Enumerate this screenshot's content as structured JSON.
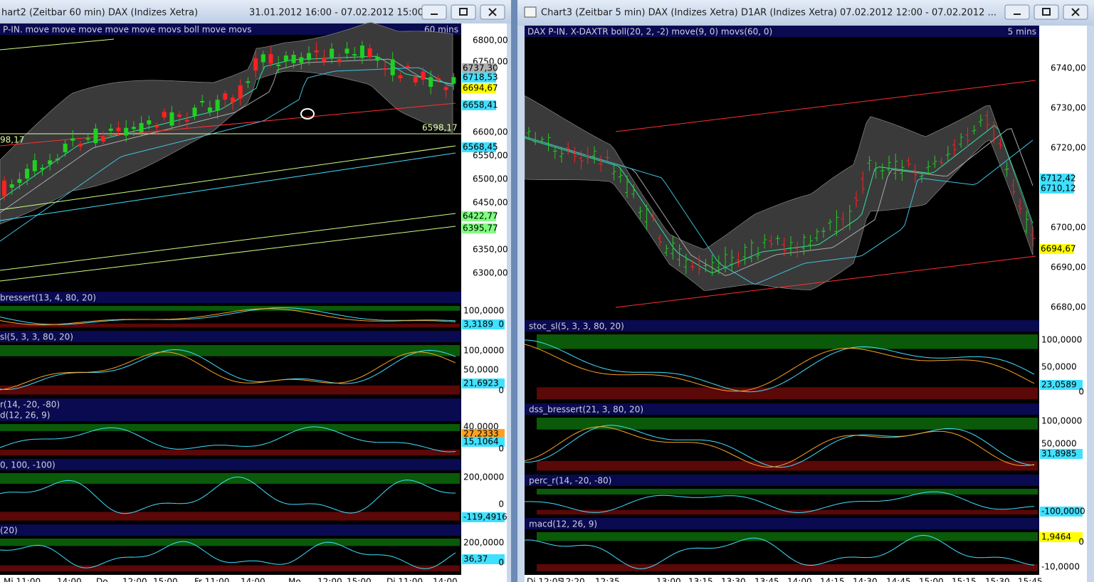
{
  "left": {
    "title": "hart2 (Zeitbar 60 min)  DAX (Indizes Xetra)",
    "range": "31.01.2012 16:00 - 07.02.2012 15:00",
    "header": "P-IN. move move move move move movs boll move movs",
    "interval": "60 mins",
    "price_labels": [
      "6800,00",
      "6750,00",
      "6737,30",
      "6718,53",
      "6694,67",
      "6658,41",
      "6600,00",
      "6568,45",
      "6550,00",
      "6500,00",
      "6450,00",
      "6422,77",
      "6395,77",
      "6350,00",
      "6300,00"
    ],
    "inline_label": "6598,17",
    "edge_label": "98,17",
    "panels": [
      {
        "names": [
          "bressert(13, 4, 80, 20)"
        ],
        "labels": [
          "100,0000",
          "3,3189",
          "0"
        ]
      },
      {
        "names": [
          "sl(5, 3, 3, 80, 20)"
        ],
        "labels": [
          "100,0000",
          "50,0000",
          "21,6923",
          "0"
        ]
      },
      {
        "names": [
          "r(14, -20, -80)",
          "d(12, 26, 9)"
        ],
        "labels": [
          "40,0000",
          "27,2333",
          "15,1064",
          "0"
        ]
      },
      {
        "names": [
          "0, 100, -100)"
        ],
        "labels": [
          "200,0000",
          "-119,4916",
          "0"
        ]
      },
      {
        "names": [
          "(20)"
        ],
        "labels": [
          "200,0000",
          "36,37",
          "0"
        ]
      }
    ],
    "time_labels": [
      "Mi 11:00",
      "14:00",
      "Do",
      "12:00",
      "15:00",
      "Fr 11:00",
      "14:00",
      "Mo",
      "12:00",
      "15:00",
      "Di 11:00",
      "14:00"
    ]
  },
  "right": {
    "title": "Chart3 (Zeitbar 5 min)  DAX (Indizes Xetra) D1AR (Indizes Xetra) 07.02.2012 12:00 - 07.02.2012 ...",
    "header": "DAX P-IN. X-DAXTR boll(20, 2, -2) move(9, 0) movs(60, 0)",
    "interval": "5 mins",
    "price_labels": [
      "6740,00",
      "6730,00",
      "6720,00",
      "6712,42",
      "6710,12",
      "6700,00",
      "6694,67",
      "6690,00",
      "6680,00"
    ],
    "panels": [
      {
        "names": [
          "stoc_sl(5, 3, 3, 80, 20)"
        ],
        "labels": [
          "100,0000",
          "50,0000",
          "23,0589",
          "0"
        ]
      },
      {
        "names": [
          "dss_bressert(21, 3, 80, 20)"
        ],
        "labels": [
          "100,0000",
          "50,0000",
          "31,8985"
        ]
      },
      {
        "names": [
          "perc_r(14, -20, -80)"
        ],
        "labels": [
          "-100,0000"
        ]
      },
      {
        "names": [
          "macd(12, 26, 9)"
        ],
        "labels": [
          "1,9464",
          "0",
          "-10,0000"
        ]
      }
    ],
    "time_labels": [
      "Di 12:05",
      "12:20",
      "12:35",
      "13:00",
      "13:15",
      "13:30",
      "13:45",
      "14:00",
      "14:15",
      "14:30",
      "14:45",
      "15:00",
      "15:15",
      "15:30",
      "15:45"
    ]
  }
}
